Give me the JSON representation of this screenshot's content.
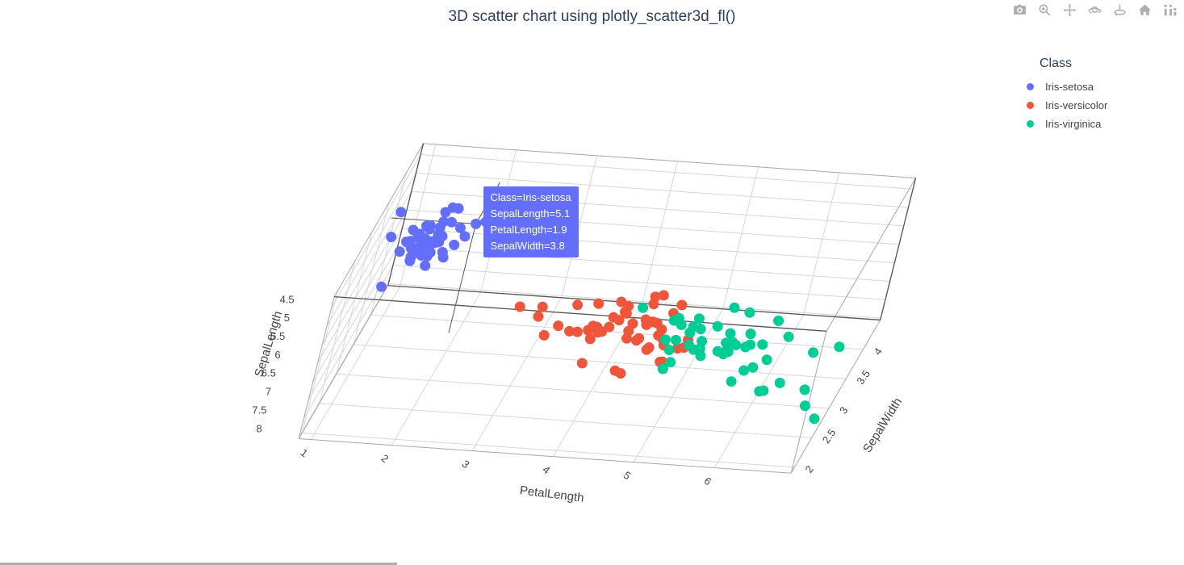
{
  "title": "3D scatter chart using plotly_scatter3d_fl()",
  "modebar": {
    "icons": [
      "camera",
      "zoom",
      "pan",
      "orbit-rotation",
      "turntable-rotation",
      "reset-camera",
      "plotly-logo"
    ]
  },
  "legend": {
    "title": "Class",
    "items": [
      {
        "label": "Iris-setosa",
        "color": "#636EFA"
      },
      {
        "label": "Iris-versicolor",
        "color": "#EF553B"
      },
      {
        "label": "Iris-virginica",
        "color": "#00CC96"
      }
    ]
  },
  "tooltip": {
    "background": "#636EFA",
    "lines": [
      "Class=Iris-setosa",
      "SepalLength=5.1",
      "PetalLength=1.9",
      "SepalWidth=3.8"
    ],
    "point": {
      "PetalLength": 1.9,
      "SepalWidth": 3.8,
      "SepalLength": 5.1
    }
  },
  "colors": {
    "title_text": "#2a3f5f",
    "axis_text": "#444444",
    "grid": "#d6d6d6",
    "cube_edge": "#a6a6a6",
    "spike": "#555555"
  },
  "chart_data": {
    "type": "scatter3d",
    "title": "3D scatter chart using plotly_scatter3d_fl()",
    "legend_title": "Class",
    "legend_position": "right",
    "marker_size_px": 13,
    "axes": {
      "x": {
        "title": "PetalLength",
        "ticks": [
          1,
          2,
          3,
          4,
          5,
          6
        ],
        "range": [
          0.85,
          6.95
        ]
      },
      "y": {
        "title": "SepalWidth",
        "ticks": [
          2,
          2.5,
          3,
          3.5,
          4
        ],
        "range": [
          1.9,
          4.5
        ]
      },
      "z": {
        "title": "SepalLength",
        "ticks": [
          4.5,
          5,
          5.5,
          6,
          6.5,
          7,
          7.5,
          8
        ],
        "range": [
          4.2,
          8.05
        ],
        "reversed": true
      }
    },
    "point_columns": [
      "PetalLength",
      "SepalWidth",
      "SepalLength"
    ],
    "series": [
      {
        "name": "Iris-setosa",
        "color": "#636EFA",
        "points": [
          [
            1.4,
            3.5,
            5.1
          ],
          [
            1.4,
            3.0,
            4.9
          ],
          [
            1.3,
            3.2,
            4.7
          ],
          [
            1.5,
            3.1,
            4.6
          ],
          [
            1.4,
            3.6,
            5.0
          ],
          [
            1.7,
            3.9,
            5.4
          ],
          [
            1.4,
            3.4,
            4.6
          ],
          [
            1.5,
            3.4,
            5.0
          ],
          [
            1.4,
            2.9,
            4.4
          ],
          [
            1.5,
            3.1,
            4.9
          ],
          [
            1.5,
            3.7,
            5.4
          ],
          [
            1.6,
            3.4,
            4.8
          ],
          [
            1.4,
            3.0,
            4.8
          ],
          [
            1.1,
            3.0,
            4.3
          ],
          [
            1.2,
            4.0,
            5.8
          ],
          [
            1.5,
            4.4,
            5.7
          ],
          [
            1.3,
            3.9,
            5.4
          ],
          [
            1.4,
            3.5,
            5.1
          ],
          [
            1.7,
            3.8,
            5.7
          ],
          [
            1.5,
            3.8,
            5.1
          ],
          [
            1.7,
            3.4,
            5.4
          ],
          [
            1.5,
            3.7,
            5.1
          ],
          [
            1.0,
            3.6,
            4.6
          ],
          [
            1.7,
            3.3,
            5.1
          ],
          [
            1.9,
            3.4,
            4.8
          ],
          [
            1.6,
            3.0,
            5.0
          ],
          [
            1.6,
            3.4,
            5.0
          ],
          [
            1.5,
            3.5,
            5.2
          ],
          [
            1.4,
            3.4,
            5.2
          ],
          [
            1.6,
            3.2,
            4.7
          ],
          [
            1.6,
            3.1,
            4.8
          ],
          [
            1.5,
            3.4,
            5.4
          ],
          [
            1.5,
            4.1,
            5.2
          ],
          [
            1.4,
            4.2,
            5.5
          ],
          [
            1.5,
            3.1,
            4.9
          ],
          [
            1.2,
            3.2,
            5.0
          ],
          [
            1.3,
            3.5,
            5.5
          ],
          [
            1.4,
            3.6,
            4.9
          ],
          [
            1.3,
            3.0,
            4.4
          ],
          [
            1.5,
            3.4,
            5.1
          ],
          [
            1.3,
            3.5,
            5.0
          ],
          [
            1.3,
            2.3,
            4.5
          ],
          [
            1.3,
            3.2,
            4.4
          ],
          [
            1.6,
            3.5,
            5.0
          ],
          [
            1.9,
            3.8,
            5.1
          ],
          [
            1.4,
            3.0,
            4.8
          ],
          [
            1.6,
            3.8,
            5.1
          ],
          [
            1.4,
            3.2,
            4.6
          ],
          [
            1.5,
            3.7,
            5.3
          ],
          [
            1.4,
            3.3,
            5.0
          ]
        ]
      },
      {
        "name": "Iris-versicolor",
        "color": "#EF553B",
        "points": [
          [
            4.7,
            3.2,
            7.0
          ],
          [
            4.5,
            3.2,
            6.4
          ],
          [
            4.9,
            3.1,
            6.9
          ],
          [
            4.0,
            2.3,
            5.5
          ],
          [
            4.6,
            2.8,
            6.5
          ],
          [
            4.5,
            2.8,
            5.7
          ],
          [
            4.7,
            3.3,
            6.3
          ],
          [
            3.3,
            2.4,
            4.9
          ],
          [
            4.6,
            2.9,
            6.6
          ],
          [
            3.9,
            2.7,
            5.2
          ],
          [
            3.5,
            2.0,
            5.0
          ],
          [
            4.2,
            3.0,
            5.9
          ],
          [
            4.0,
            2.2,
            6.0
          ],
          [
            4.7,
            2.9,
            6.1
          ],
          [
            3.6,
            2.9,
            5.6
          ],
          [
            4.4,
            3.1,
            6.7
          ],
          [
            4.5,
            3.0,
            5.6
          ],
          [
            4.1,
            2.7,
            5.8
          ],
          [
            4.5,
            2.2,
            6.2
          ],
          [
            3.9,
            2.5,
            5.6
          ],
          [
            4.8,
            3.2,
            5.9
          ],
          [
            4.0,
            2.8,
            6.1
          ],
          [
            4.9,
            2.5,
            6.3
          ],
          [
            4.7,
            2.8,
            6.1
          ],
          [
            4.3,
            2.9,
            6.4
          ],
          [
            4.4,
            3.0,
            6.6
          ],
          [
            4.8,
            2.8,
            6.8
          ],
          [
            5.0,
            3.0,
            6.7
          ],
          [
            4.5,
            2.9,
            6.0
          ],
          [
            3.5,
            2.6,
            5.7
          ],
          [
            3.8,
            2.4,
            5.5
          ],
          [
            3.7,
            2.4,
            5.5
          ],
          [
            3.9,
            2.7,
            5.8
          ],
          [
            5.1,
            2.7,
            6.0
          ],
          [
            4.5,
            3.0,
            5.4
          ],
          [
            4.5,
            3.4,
            6.0
          ],
          [
            4.7,
            3.1,
            6.7
          ],
          [
            4.4,
            2.3,
            6.3
          ],
          [
            4.1,
            3.0,
            5.6
          ],
          [
            4.0,
            2.5,
            5.5
          ],
          [
            4.4,
            2.6,
            5.5
          ],
          [
            4.6,
            3.0,
            6.1
          ],
          [
            4.0,
            2.6,
            5.8
          ],
          [
            3.3,
            2.3,
            5.0
          ],
          [
            4.2,
            2.7,
            5.6
          ],
          [
            4.2,
            3.0,
            5.7
          ],
          [
            4.2,
            2.9,
            5.7
          ],
          [
            4.3,
            2.9,
            6.2
          ],
          [
            3.0,
            2.5,
            5.1
          ],
          [
            4.1,
            2.8,
            5.7
          ]
        ]
      },
      {
        "name": "Iris-virginica",
        "color": "#00CC96",
        "points": [
          [
            6.0,
            3.3,
            6.3
          ],
          [
            5.1,
            2.7,
            5.8
          ],
          [
            5.9,
            3.0,
            7.1
          ],
          [
            5.6,
            2.9,
            6.3
          ],
          [
            5.8,
            3.0,
            6.5
          ],
          [
            6.6,
            3.0,
            7.6
          ],
          [
            4.5,
            2.5,
            4.9
          ],
          [
            6.3,
            2.9,
            7.3
          ],
          [
            5.8,
            2.5,
            6.7
          ],
          [
            6.1,
            3.6,
            7.2
          ],
          [
            5.1,
            3.2,
            6.5
          ],
          [
            5.3,
            2.7,
            6.4
          ],
          [
            5.5,
            3.0,
            6.8
          ],
          [
            5.0,
            2.5,
            5.7
          ],
          [
            5.1,
            2.8,
            5.8
          ],
          [
            5.3,
            3.2,
            6.4
          ],
          [
            5.5,
            3.0,
            6.5
          ],
          [
            6.7,
            3.8,
            7.7
          ],
          [
            6.9,
            2.6,
            7.7
          ],
          [
            5.0,
            2.2,
            6.0
          ],
          [
            5.7,
            3.2,
            6.9
          ],
          [
            4.9,
            2.8,
            5.6
          ],
          [
            6.7,
            2.8,
            7.7
          ],
          [
            4.9,
            2.7,
            6.3
          ],
          [
            5.7,
            3.3,
            6.7
          ],
          [
            6.0,
            3.2,
            7.2
          ],
          [
            4.8,
            2.8,
            6.2
          ],
          [
            4.9,
            3.0,
            6.1
          ],
          [
            5.6,
            2.8,
            6.4
          ],
          [
            5.8,
            3.0,
            7.2
          ],
          [
            6.1,
            2.8,
            7.4
          ],
          [
            6.4,
            3.8,
            7.9
          ],
          [
            5.6,
            2.8,
            6.4
          ],
          [
            5.1,
            2.8,
            6.3
          ],
          [
            5.6,
            2.6,
            6.1
          ],
          [
            6.1,
            3.0,
            7.7
          ],
          [
            5.6,
            3.4,
            6.3
          ],
          [
            5.5,
            3.1,
            6.4
          ],
          [
            4.8,
            3.0,
            6.0
          ],
          [
            5.4,
            3.1,
            6.9
          ],
          [
            5.6,
            3.1,
            6.7
          ],
          [
            5.1,
            3.1,
            6.9
          ],
          [
            5.1,
            2.7,
            5.8
          ],
          [
            5.9,
            3.2,
            6.8
          ],
          [
            5.7,
            3.3,
            6.7
          ],
          [
            5.2,
            3.0,
            6.7
          ],
          [
            5.0,
            2.5,
            6.3
          ],
          [
            5.2,
            3.0,
            6.5
          ],
          [
            5.4,
            3.4,
            6.2
          ],
          [
            5.1,
            3.0,
            5.9
          ]
        ]
      }
    ]
  }
}
